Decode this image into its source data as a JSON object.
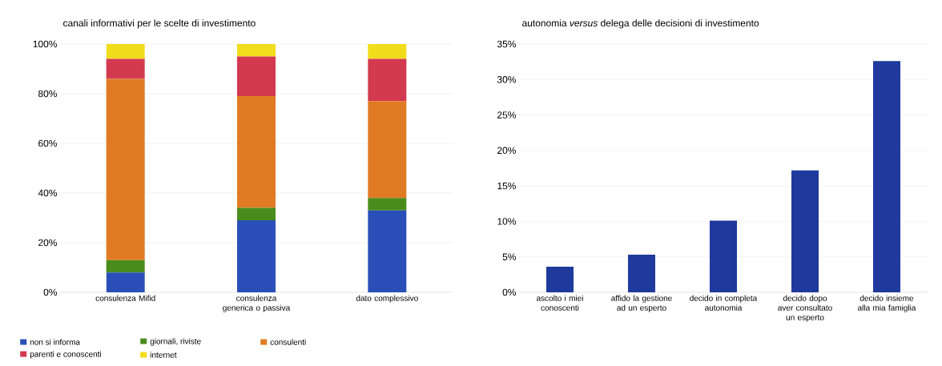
{
  "chart_data": [
    {
      "type": "bar",
      "title": "canali informativi per le scelte di investimento",
      "stacked": true,
      "categories": [
        "consulenza Mifid",
        "consulenza generica o passiva",
        "dato complessivo"
      ],
      "series": [
        {
          "name": "non si informa",
          "color": "#2a4fb8",
          "values": [
            8,
            29,
            33
          ]
        },
        {
          "name": "giornali, riviste",
          "color": "#4a8c1c",
          "values": [
            5,
            5,
            5
          ]
        },
        {
          "name": "consulenti",
          "color": "#e07b23",
          "values": [
            73,
            45,
            39
          ]
        },
        {
          "name": "parenti e conoscenti",
          "color": "#d33a50",
          "values": [
            8,
            16,
            17
          ]
        },
        {
          "name": "internet",
          "color": "#f2dd1c",
          "values": [
            6,
            5,
            6
          ]
        }
      ],
      "ylim": [
        0,
        100
      ],
      "yticks": [
        {
          "value": 0,
          "label": "0%"
        },
        {
          "value": 20,
          "label": "20%"
        },
        {
          "value": 40,
          "label": "40%"
        },
        {
          "value": 60,
          "label": "60%"
        },
        {
          "value": 80,
          "label": "80%"
        },
        {
          "value": 100,
          "label": "100%"
        }
      ],
      "grid": "y",
      "legend": "bottom"
    },
    {
      "type": "bar",
      "title": "autonomia *versus* delega delle decisioni di investimento",
      "categories": [
        "ascolto i miei conoscenti",
        "affido la gestione ad un esperto",
        "decido in completa autonomia",
        "decido dopo aver consultato un esperto",
        "decido insieme alla mia famiglia"
      ],
      "values": [
        3.6,
        5.3,
        10.1,
        17.2,
        32.6
      ],
      "color": "#1f3a9c",
      "ylim": [
        0,
        35
      ],
      "yticks": [
        {
          "value": 0,
          "label": "0%"
        },
        {
          "value": 5,
          "label": "5%"
        },
        {
          "value": 10,
          "label": "10%"
        },
        {
          "value": 15,
          "label": "15%"
        },
        {
          "value": 20,
          "label": "20%"
        },
        {
          "value": 25,
          "label": "25%"
        },
        {
          "value": 30,
          "label": "30%"
        },
        {
          "value": 35,
          "label": "35%"
        }
      ],
      "grid": "y"
    }
  ]
}
